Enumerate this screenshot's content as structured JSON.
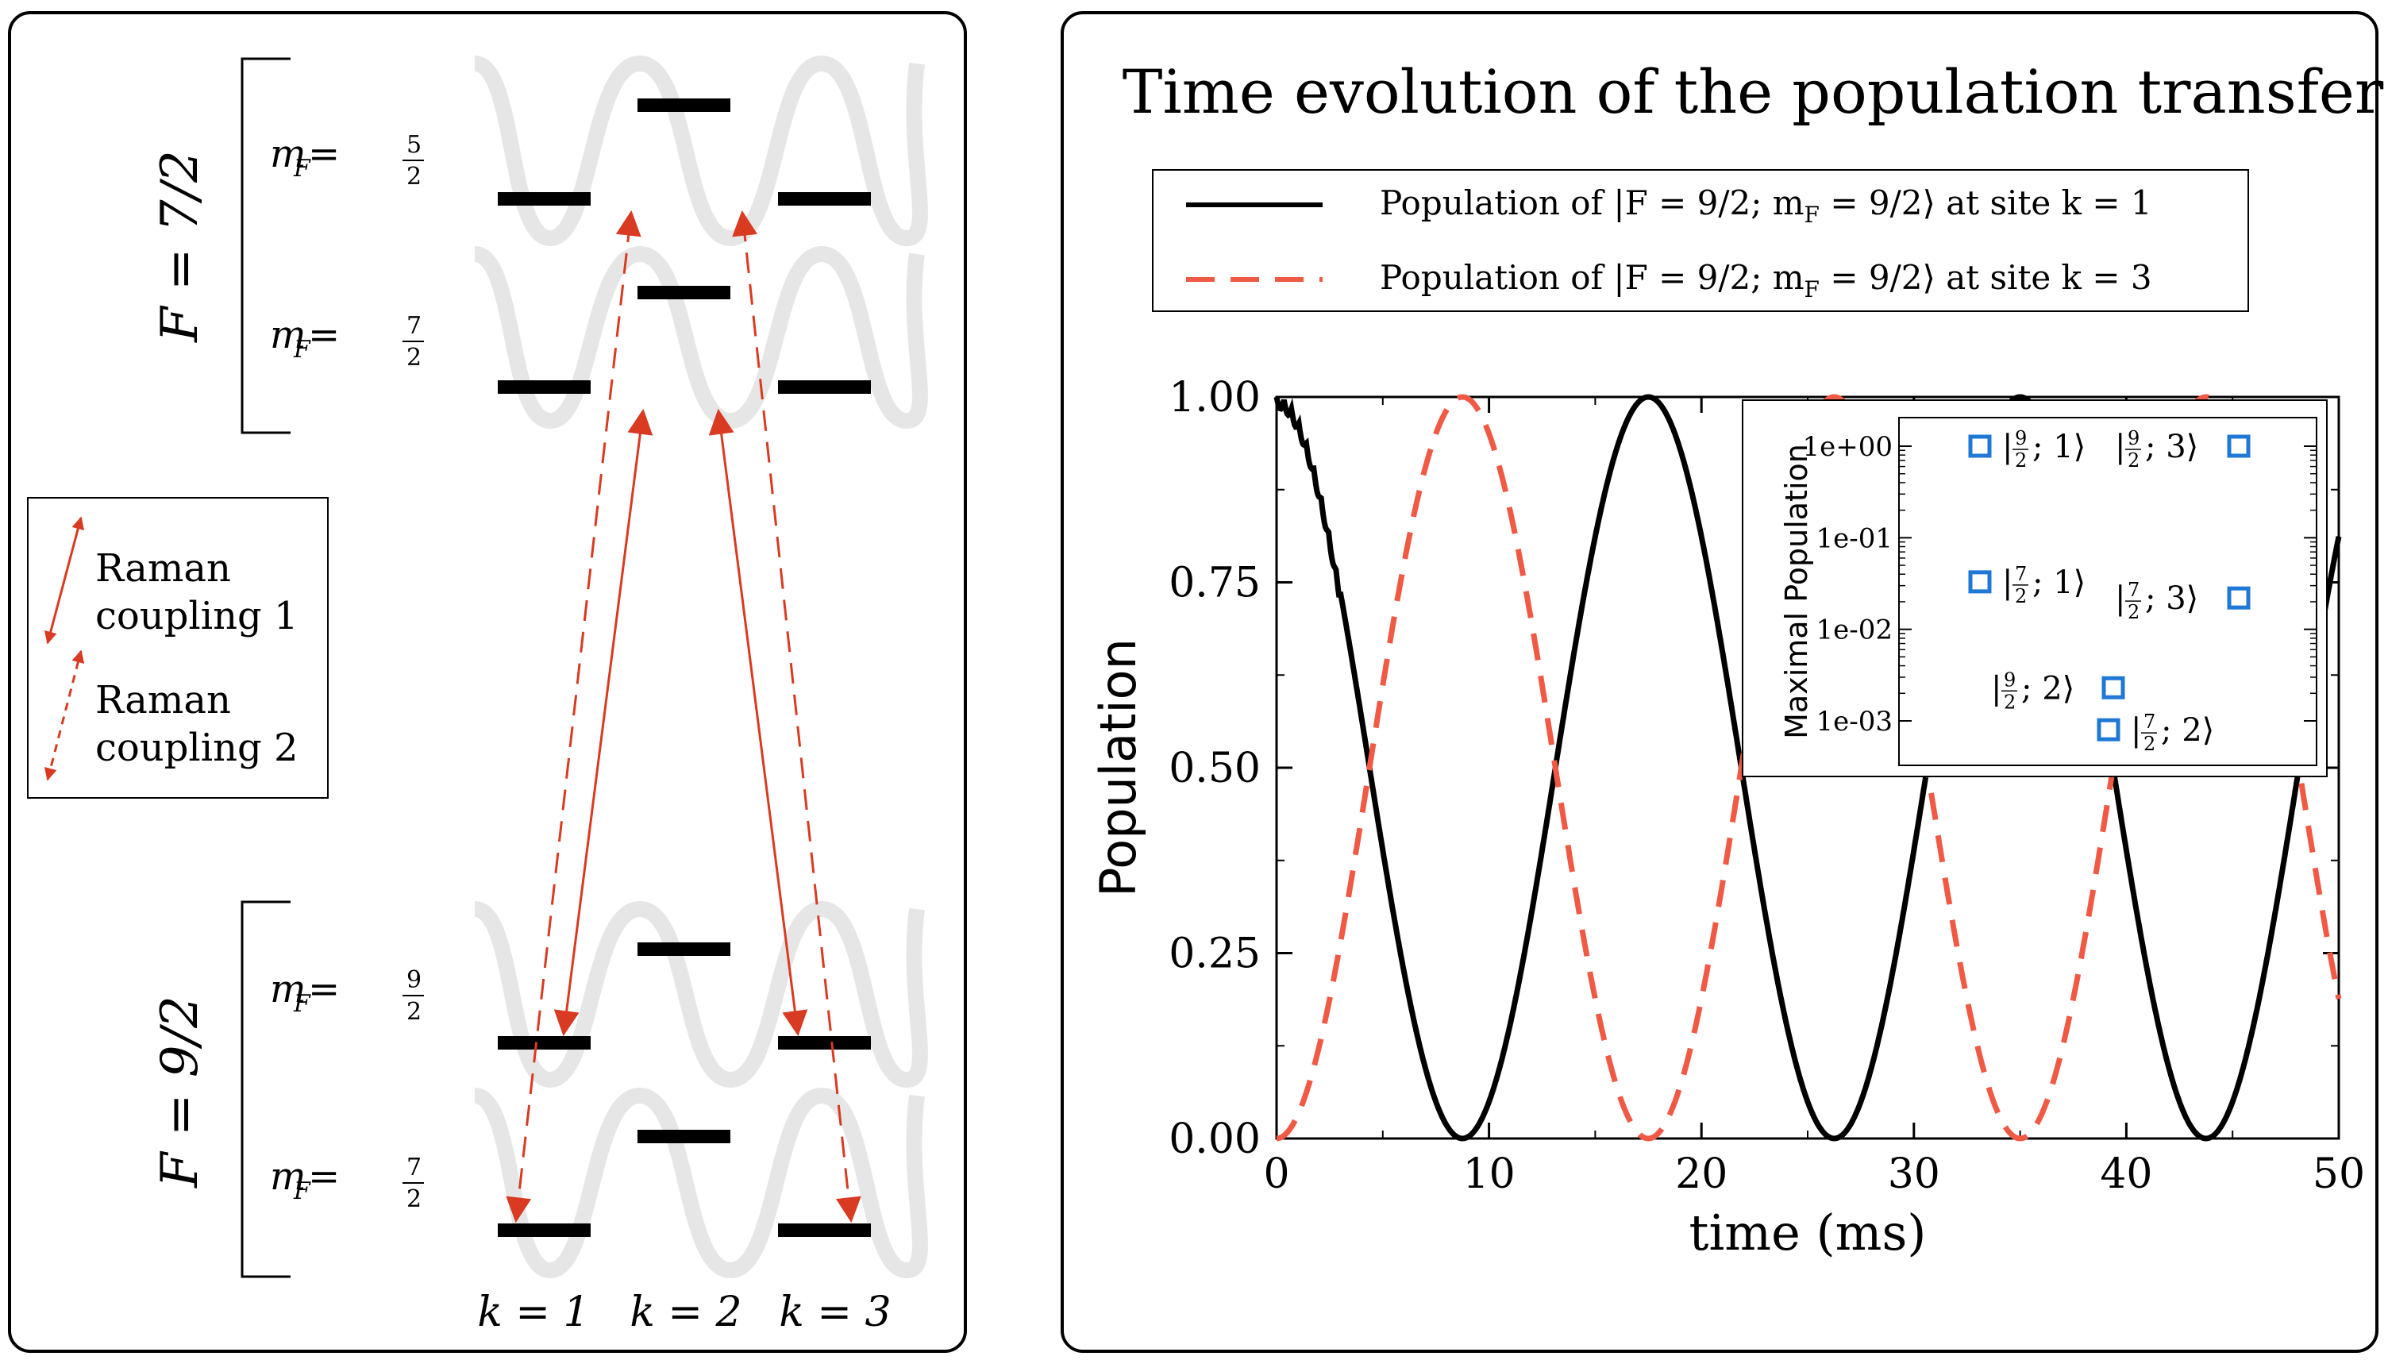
{
  "left": {
    "manifolds": [
      {
        "label": "F = 7/2",
        "levels": [
          {
            "label": "m",
            "sub": "F",
            "eq": " = ",
            "num": "5",
            "den": "2"
          },
          {
            "label": "m",
            "sub": "F",
            "eq": " = ",
            "num": "7",
            "den": "2"
          }
        ]
      },
      {
        "label": "F = 9/2",
        "levels": [
          {
            "label": "m",
            "sub": "F",
            "eq": " = ",
            "num": "9",
            "den": "2"
          },
          {
            "label": "m",
            "sub": "F",
            "eq": " = ",
            "num": "7",
            "den": "2"
          }
        ]
      }
    ],
    "sites": [
      "k = 1",
      "k = 2",
      "k = 3"
    ],
    "legend": {
      "solid_line1": "Raman",
      "solid_line2": "coupling 1",
      "dashed_line1": "Raman",
      "dashed_line2": "coupling 2"
    },
    "colors": {
      "arrow": "#d93a22",
      "lattice": "#e6e6e6",
      "level": "#000000"
    }
  },
  "right": {
    "title": "Time evolution of the population transfer",
    "legend": {
      "item1": {
        "pre": "Population of |F = 9/2; m",
        "sub": "F",
        "post": " = 9/2⟩ at site k = 1"
      },
      "item2": {
        "pre": "Population of |F = 9/2; m",
        "sub": "F",
        "post": " = 9/2⟩ at site k = 3"
      }
    },
    "inset": {
      "ylabel": "Maximal Population",
      "yticks": [
        "1e+00",
        "1e-01",
        "1e-02",
        "1e-03"
      ],
      "points": [
        {
          "num": "9",
          "den": "2",
          "k": "1",
          "value": 1.0
        },
        {
          "num": "9",
          "den": "2",
          "k": "3",
          "value": 1.0
        },
        {
          "num": "7",
          "den": "2",
          "k": "1",
          "value": 0.033
        },
        {
          "num": "7",
          "den": "2",
          "k": "3",
          "value": 0.022
        },
        {
          "num": "9",
          "den": "2",
          "k": "2",
          "value": 0.0023
        },
        {
          "num": "7",
          "den": "2",
          "k": "2",
          "value": 0.0008
        }
      ],
      "marker_color": "#1f78d6"
    }
  },
  "chart_data": {
    "type": "line",
    "title": "Time evolution of the population transfer",
    "xlabel": "time (ms)",
    "ylabel": "Population",
    "xlim": [
      0,
      50
    ],
    "ylim": [
      0,
      1
    ],
    "xticks": [
      "0",
      "10",
      "20",
      "30",
      "40",
      "50"
    ],
    "yticks": [
      "0.00",
      "0.25",
      "0.50",
      "0.75",
      "1.00"
    ],
    "series": [
      {
        "name": "Population of |F=9/2; m_F=9/2⟩ at site k=1",
        "style": "solid",
        "color": "#000000",
        "period_ms": 17.5,
        "x": [
          0,
          8.75,
          17.5,
          26.25,
          35,
          43.75,
          50
        ],
        "y": [
          1.0,
          0.0,
          1.0,
          0.0,
          1.0,
          0.0,
          0.77
        ]
      },
      {
        "name": "Population of |F=9/2; m_F=9/2⟩ at site k=3",
        "style": "dashed",
        "color": "#f05a45",
        "period_ms": 17.5,
        "x": [
          0,
          8.75,
          17.5,
          26.25,
          35,
          43.75,
          50
        ],
        "y": [
          0.0,
          1.0,
          0.0,
          1.0,
          0.0,
          1.0,
          0.23
        ]
      }
    ]
  }
}
